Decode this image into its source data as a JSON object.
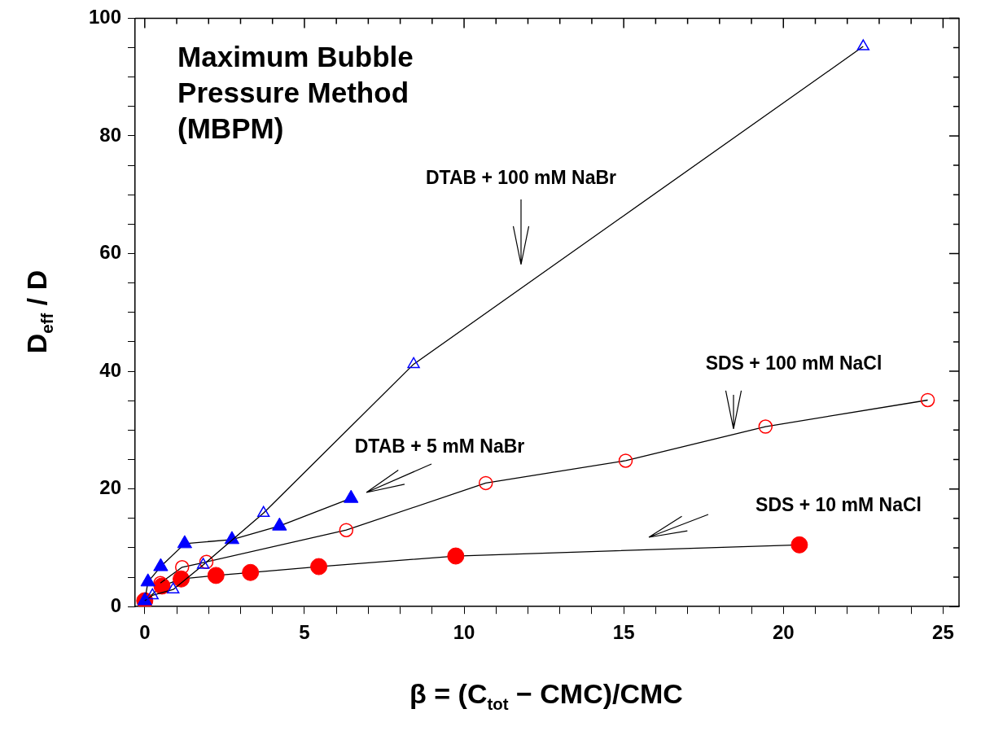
{
  "chart_data": {
    "type": "line",
    "title": "Maximum Bubble Pressure Method (MBPM)",
    "xlabel": "β = (C$_{tot}$ − CMC)/CMC",
    "ylabel": "D$_{eff}$ / D",
    "xlim": [
      -0.3,
      25.5
    ],
    "ylim": [
      0,
      100
    ],
    "xticks": [
      0,
      {
        "value": 1,
        "label": null
      },
      {
        "value": 2,
        "label": null
      },
      {
        "value": 3,
        "label": null
      },
      {
        "value": 4,
        "label": null
      },
      5,
      {
        "value": 6,
        "label": null
      },
      {
        "value": 7,
        "label": null
      },
      {
        "value": 8,
        "label": null
      },
      {
        "value": 9,
        "label": null
      },
      10,
      {
        "value": 11,
        "label": null
      },
      {
        "value": 12,
        "label": null
      },
      {
        "value": 13,
        "label": null
      },
      {
        "value": 14,
        "label": null
      },
      15,
      {
        "value": 16,
        "label": null
      },
      {
        "value": 17,
        "label": null
      },
      {
        "value": 18,
        "label": null
      },
      {
        "value": 19,
        "label": null
      },
      20,
      {
        "value": 21,
        "label": null
      },
      {
        "value": 22,
        "label": null
      },
      {
        "value": 23,
        "label": null
      },
      {
        "value": 24,
        "label": null
      },
      25
    ],
    "yticks": [
      0,
      {
        "value": 5,
        "label": null
      },
      {
        "value": 10,
        "label": null
      },
      {
        "value": 15,
        "label": null
      },
      20,
      {
        "value": 25,
        "label": null
      },
      {
        "value": 30,
        "label": null
      },
      {
        "value": 35,
        "label": null
      },
      40,
      {
        "value": 45,
        "label": null
      },
      {
        "value": 50,
        "label": null
      },
      {
        "value": 55,
        "label": null
      },
      60,
      {
        "value": 65,
        "label": null
      },
      {
        "value": 70,
        "label": null
      },
      {
        "value": 75,
        "label": null
      },
      80,
      {
        "value": 85,
        "label": null
      },
      {
        "value": 90,
        "label": null
      },
      {
        "value": 95,
        "label": null
      },
      100
    ],
    "grid": false,
    "legend": false,
    "line_style": "solid",
    "series": [
      {
        "color": "#0000ff",
        "marker": "triangle",
        "x": [
          0,
          0.24,
          0.89,
          1.83,
          3.72,
          8.42,
          22.5
        ],
        "values": [
          1,
          1.9,
          2.9,
          7.1,
          15.9,
          41.2,
          95.2
        ]
      },
      {
        "color": "#0000ff",
        "marker": "triangle",
        "x": [
          0,
          0.1,
          0.5,
          1.25,
          2.73,
          4.22,
          6.46
        ],
        "values": [
          1,
          4.2,
          6.8,
          10.7,
          11.4,
          13.7,
          18.4
        ]
      },
      {
        "color": "#ff0000",
        "marker": "circle",
        "x": [
          0.49,
          1.17,
          1.93,
          6.31,
          10.68,
          15.06,
          19.44,
          24.52
        ],
        "values": [
          4,
          6.7,
          7.6,
          13,
          21,
          24.8,
          30.6,
          35.1
        ]
      },
      {
        "color": "#ff0000",
        "marker": "circle",
        "x": [
          0,
          0.54,
          1.14,
          2.23,
          3.31,
          5.45,
          9.74,
          20.5
        ],
        "values": [
          1,
          3.5,
          4.7,
          5.3,
          5.8,
          6.8,
          8.6,
          10.5
        ]
      }
    ],
    "annotations": [
      "DTAB + 100 mM NaBr",
      "DTAB + 5 mM NaBr",
      "SDS + 100 mM NaCl",
      "SDS + 10 mM NaCl"
    ]
  }
}
